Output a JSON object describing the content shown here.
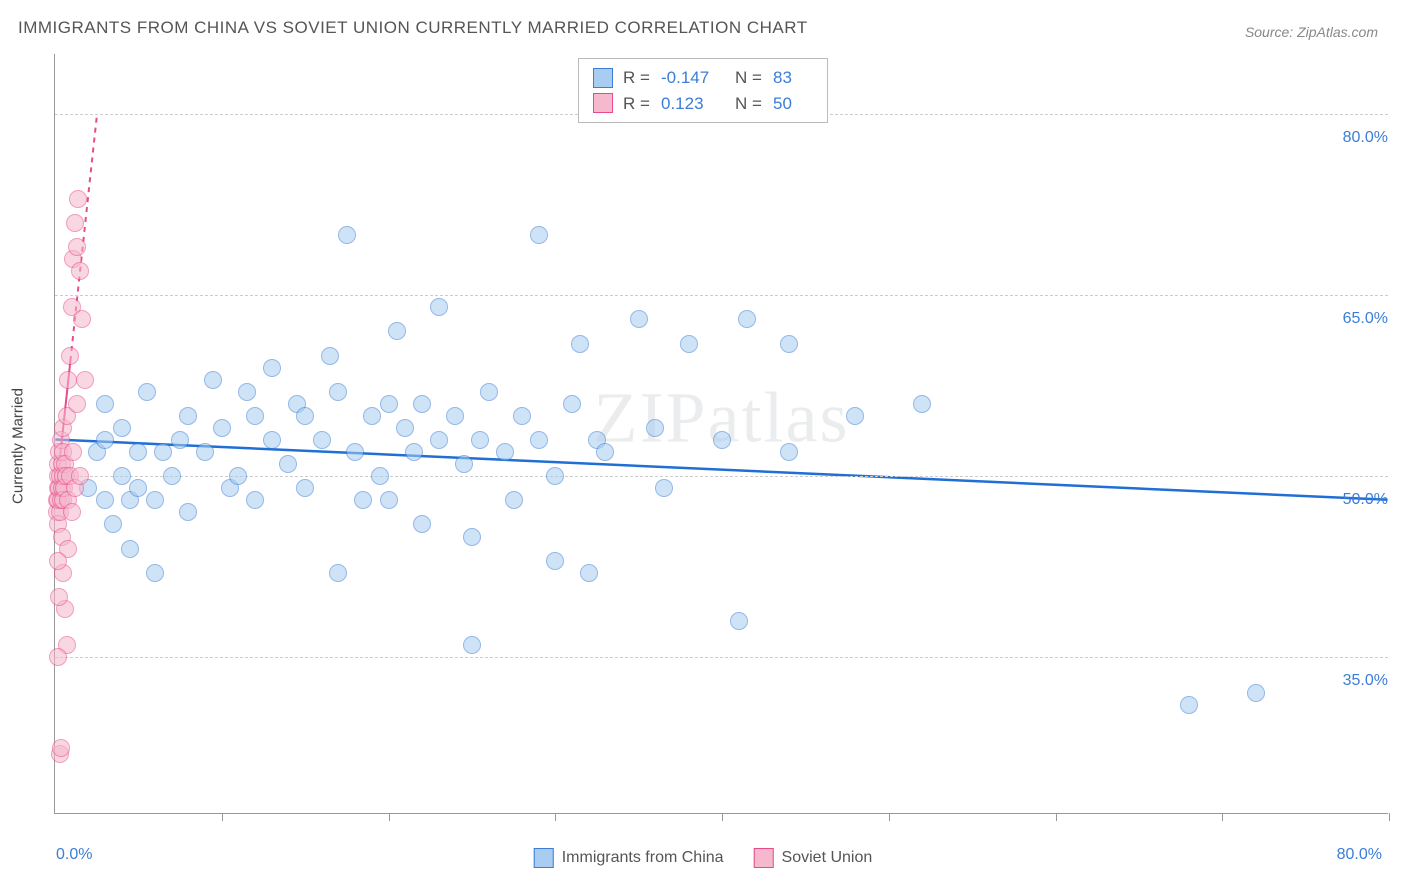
{
  "title": "IMMIGRANTS FROM CHINA VS SOVIET UNION CURRENTLY MARRIED CORRELATION CHART",
  "source": "Source: ZipAtlas.com",
  "watermark": "ZIPatlas",
  "ylabel": "Currently Married",
  "chart": {
    "type": "scatter",
    "xlim": [
      0,
      80
    ],
    "ylim": [
      22,
      85
    ],
    "x_tick_positions": [
      0,
      10,
      20,
      30,
      40,
      50,
      60,
      70,
      80
    ],
    "y_gridlines": [
      35,
      50,
      65,
      80
    ],
    "y_tick_labels": [
      "35.0%",
      "50.0%",
      "65.0%",
      "80.0%"
    ],
    "x_min_label": "0.0%",
    "x_max_label": "80.0%",
    "background_color": "#ffffff",
    "grid_color": "#cccccc",
    "axis_color": "#999999",
    "marker_radius": 9,
    "marker_opacity": 0.55,
    "series": [
      {
        "name": "Immigrants from China",
        "color_fill": "#a8cdf0",
        "color_stroke": "#3b7dd8",
        "R": "-0.147",
        "N": "83",
        "regression": {
          "x1": 0,
          "y1": 53.0,
          "x2": 80,
          "y2": 48.0,
          "stroke": "#1f6fd4",
          "width": 2.5,
          "dash": "none"
        },
        "points": [
          [
            2,
            49
          ],
          [
            2.5,
            52
          ],
          [
            3,
            48
          ],
          [
            3,
            53
          ],
          [
            3.5,
            46
          ],
          [
            4,
            50
          ],
          [
            4,
            54
          ],
          [
            4.5,
            48
          ],
          [
            5,
            52
          ],
          [
            5,
            49
          ],
          [
            5.5,
            57
          ],
          [
            6,
            42
          ],
          [
            6,
            48
          ],
          [
            7,
            50
          ],
          [
            7.5,
            53
          ],
          [
            8,
            55
          ],
          [
            8,
            47
          ],
          [
            9,
            52
          ],
          [
            9.5,
            58
          ],
          [
            10,
            54
          ],
          [
            10.5,
            49
          ],
          [
            11,
            50
          ],
          [
            11.5,
            57
          ],
          [
            12,
            55
          ],
          [
            12,
            48
          ],
          [
            13,
            53
          ],
          [
            13,
            59
          ],
          [
            14,
            51
          ],
          [
            14.5,
            56
          ],
          [
            15,
            55
          ],
          [
            15,
            49
          ],
          [
            16,
            53
          ],
          [
            16.5,
            60
          ],
          [
            17,
            57
          ],
          [
            17,
            42
          ],
          [
            17.5,
            70
          ],
          [
            18,
            52
          ],
          [
            18.5,
            48
          ],
          [
            19,
            55
          ],
          [
            19.5,
            50
          ],
          [
            20,
            56
          ],
          [
            20,
            48
          ],
          [
            20.5,
            62
          ],
          [
            21,
            54
          ],
          [
            21.5,
            52
          ],
          [
            22,
            46
          ],
          [
            22,
            56
          ],
          [
            23,
            53
          ],
          [
            23,
            64
          ],
          [
            24,
            55
          ],
          [
            24.5,
            51
          ],
          [
            25,
            45
          ],
          [
            25,
            36
          ],
          [
            25.5,
            53
          ],
          [
            26,
            57
          ],
          [
            27,
            52
          ],
          [
            27.5,
            48
          ],
          [
            28,
            55
          ],
          [
            29,
            70
          ],
          [
            29,
            53
          ],
          [
            30,
            50
          ],
          [
            30,
            43
          ],
          [
            31,
            56
          ],
          [
            31.5,
            61
          ],
          [
            32,
            42
          ],
          [
            32.5,
            53
          ],
          [
            33,
            52
          ],
          [
            35,
            63
          ],
          [
            36,
            54
          ],
          [
            36.5,
            49
          ],
          [
            38,
            61
          ],
          [
            40,
            53
          ],
          [
            41,
            38
          ],
          [
            41.5,
            63
          ],
          [
            44,
            52
          ],
          [
            44,
            61
          ],
          [
            48,
            55
          ],
          [
            52,
            56
          ],
          [
            68,
            31
          ],
          [
            72,
            32
          ],
          [
            3,
            56
          ],
          [
            4.5,
            44
          ],
          [
            6.5,
            52
          ]
        ]
      },
      {
        "name": "Soviet Union",
        "color_fill": "#f5b8cc",
        "color_stroke": "#e84b8a",
        "R": "0.123",
        "N": "50",
        "regression": {
          "x1": 0,
          "y1": 48,
          "x2": 2.5,
          "y2": 80,
          "stroke": "#e84b8a",
          "width": 2,
          "dash": "5,5",
          "solid_until_x": 0.9
        },
        "points": [
          [
            0.1,
            47
          ],
          [
            0.1,
            48
          ],
          [
            0.15,
            49
          ],
          [
            0.15,
            50
          ],
          [
            0.2,
            48
          ],
          [
            0.2,
            51
          ],
          [
            0.2,
            46
          ],
          [
            0.25,
            49
          ],
          [
            0.25,
            52
          ],
          [
            0.3,
            47
          ],
          [
            0.3,
            50
          ],
          [
            0.35,
            48
          ],
          [
            0.35,
            53
          ],
          [
            0.4,
            49
          ],
          [
            0.4,
            51
          ],
          [
            0.4,
            45
          ],
          [
            0.45,
            50
          ],
          [
            0.45,
            54
          ],
          [
            0.5,
            48
          ],
          [
            0.5,
            52
          ],
          [
            0.5,
            42
          ],
          [
            0.55,
            49
          ],
          [
            0.6,
            51
          ],
          [
            0.6,
            39
          ],
          [
            0.65,
            50
          ],
          [
            0.7,
            55
          ],
          [
            0.7,
            36
          ],
          [
            0.75,
            48
          ],
          [
            0.8,
            58
          ],
          [
            0.8,
            44
          ],
          [
            0.9,
            60
          ],
          [
            0.9,
            50
          ],
          [
            1.0,
            64
          ],
          [
            1.0,
            47
          ],
          [
            1.1,
            68
          ],
          [
            1.1,
            52
          ],
          [
            1.2,
            71
          ],
          [
            1.2,
            49
          ],
          [
            1.3,
            69
          ],
          [
            1.3,
            56
          ],
          [
            1.4,
            73
          ],
          [
            1.5,
            67
          ],
          [
            1.5,
            50
          ],
          [
            1.6,
            63
          ],
          [
            1.8,
            58
          ],
          [
            0.3,
            27
          ],
          [
            0.35,
            27.5
          ],
          [
            0.2,
            35
          ],
          [
            0.25,
            40
          ],
          [
            0.15,
            43
          ]
        ]
      }
    ]
  },
  "legend": {
    "r_label": "R =",
    "n_label": "N ="
  }
}
